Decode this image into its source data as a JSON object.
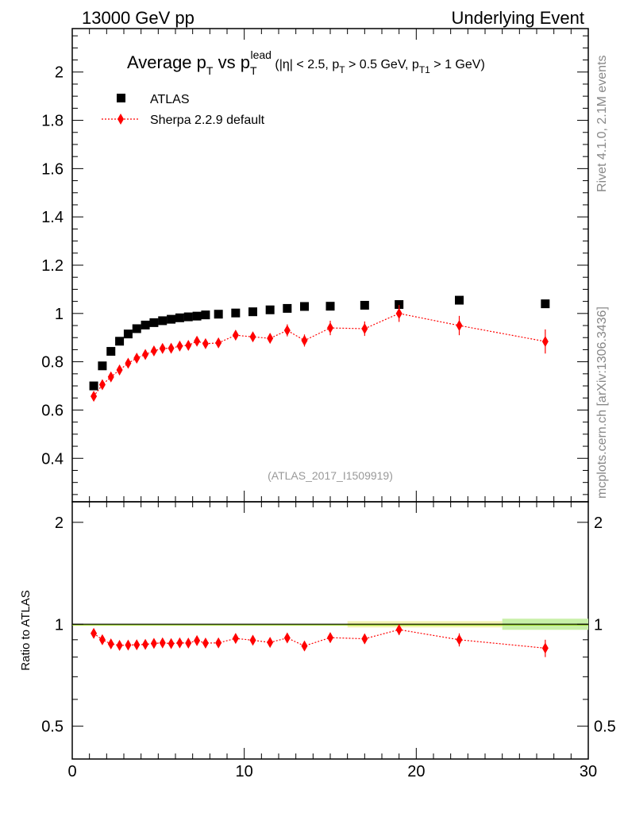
{
  "header": {
    "left": "13000 GeV pp",
    "right": "Underlying Event"
  },
  "side_labels": {
    "rivet": "Rivet 4.1.0,  2.1M events",
    "mcplots": "mcplots.cern.ch [arXiv:1306.3436]"
  },
  "colors": {
    "atlas": "#000000",
    "sherpa": "#ff0000",
    "band_green": "#c8f0a8",
    "band_yellow": "#f0f0a0"
  },
  "chart_data": {
    "type": "scatter",
    "title_parts": {
      "pre": "Average p",
      "sub1": "T",
      "mid": " vs p",
      "sub2": "T",
      "sup2": "lead",
      "cuts_a": " (|η| < 2.5, p",
      "cuts_sub_a": "T",
      "cuts_b": " > 0.5 GeV, p",
      "cuts_sub_b": "T1",
      "cuts_c": " > 1 GeV)"
    },
    "analysis_id": "(ATLAS_2017_I1509919)",
    "xlim": [
      0,
      30
    ],
    "ylim_main": [
      0.22,
      2.18
    ],
    "ylim_ratio": [
      0.4,
      2.3
    ],
    "x_ticks": [
      "0",
      "10",
      "20",
      "30"
    ],
    "y_ticks_main": [
      "0.4",
      "0.6",
      "0.8",
      "1",
      "1.2",
      "1.4",
      "1.6",
      "1.8",
      "2"
    ],
    "y_ticks_ratio": [
      "0.5",
      "1",
      "2"
    ],
    "ratio_ylabel": "Ratio to ATLAS",
    "legend": {
      "data": "ATLAS",
      "mc": "Sherpa 2.2.9 default"
    },
    "x": [
      1.25,
      1.75,
      2.25,
      2.75,
      3.25,
      3.75,
      4.25,
      4.75,
      5.25,
      5.75,
      6.25,
      6.75,
      7.25,
      7.75,
      8.5,
      9.5,
      10.5,
      11.5,
      12.5,
      13.5,
      15,
      17,
      19,
      22.5,
      27.5
    ],
    "series": [
      {
        "name": "ATLAS",
        "values": [
          0.7,
          0.783,
          0.843,
          0.885,
          0.915,
          0.937,
          0.952,
          0.962,
          0.97,
          0.976,
          0.982,
          0.986,
          0.989,
          0.994,
          0.997,
          1.002,
          1.007,
          1.015,
          1.021,
          1.029,
          1.03,
          1.034,
          1.037,
          1.055,
          1.04
        ]
      },
      {
        "name": "Sherpa 2.2.9 default",
        "values": [
          0.657,
          0.705,
          0.737,
          0.766,
          0.794,
          0.815,
          0.83,
          0.845,
          0.855,
          0.856,
          0.865,
          0.868,
          0.885,
          0.875,
          0.878,
          0.91,
          0.903,
          0.897,
          0.93,
          0.888,
          0.94,
          0.937,
          1.0,
          0.95,
          0.884
        ],
        "errors": [
          0.01,
          0.01,
          0.01,
          0.01,
          0.01,
          0.01,
          0.01,
          0.01,
          0.01,
          0.01,
          0.01,
          0.01,
          0.012,
          0.012,
          0.012,
          0.015,
          0.015,
          0.02,
          0.025,
          0.025,
          0.03,
          0.03,
          0.035,
          0.04,
          0.05
        ]
      }
    ],
    "ratio_values": [
      0.94,
      0.9,
      0.875,
      0.866,
      0.868,
      0.87,
      0.872,
      0.878,
      0.881,
      0.877,
      0.881,
      0.88,
      0.895,
      0.88,
      0.881,
      0.908,
      0.897,
      0.884,
      0.911,
      0.863,
      0.913,
      0.906,
      0.964,
      0.9,
      0.85
    ],
    "ratio_errors": [
      0.015,
      0.012,
      0.012,
      0.012,
      0.012,
      0.012,
      0.012,
      0.012,
      0.012,
      0.012,
      0.012,
      0.012,
      0.014,
      0.014,
      0.014,
      0.016,
      0.016,
      0.02,
      0.025,
      0.025,
      0.03,
      0.03,
      0.035,
      0.04,
      0.05
    ]
  }
}
